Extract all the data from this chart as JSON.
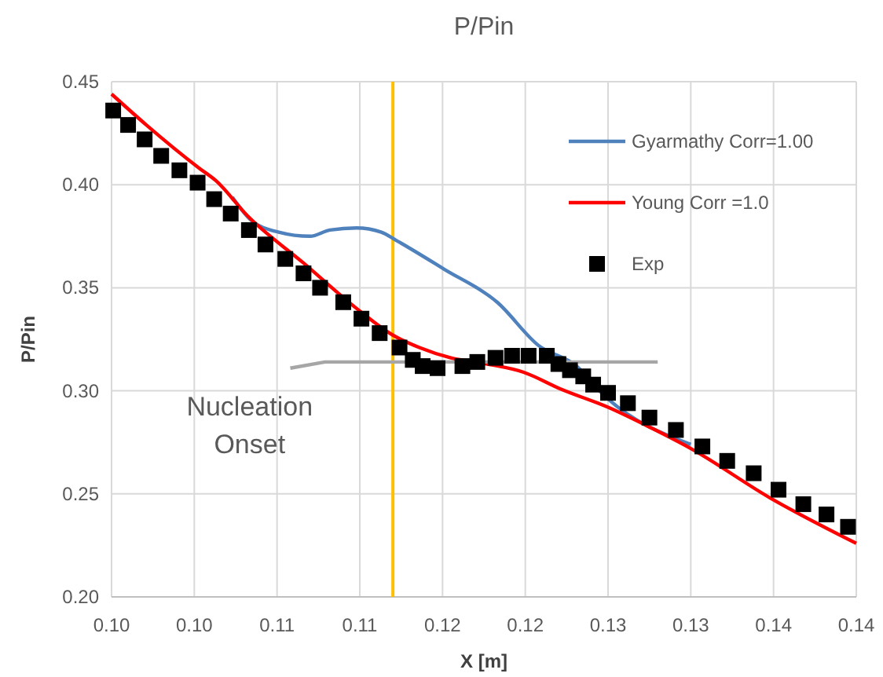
{
  "chart_data": {
    "type": "line",
    "title": "P/Pin",
    "xlabel": "X [m]",
    "ylabel": "P/Pin",
    "xlim": [
      0.0975,
      0.1425
    ],
    "xticks": [
      {
        "value": 0.0975,
        "label": "0.10"
      },
      {
        "value": 0.1025,
        "label": "0.10"
      },
      {
        "value": 0.1075,
        "label": "0.11"
      },
      {
        "value": 0.1125,
        "label": "0.11"
      },
      {
        "value": 0.1175,
        "label": "0.12"
      },
      {
        "value": 0.1225,
        "label": "0.12"
      },
      {
        "value": 0.1275,
        "label": "0.13"
      },
      {
        "value": 0.1325,
        "label": "0.13"
      },
      {
        "value": 0.1375,
        "label": "0.14"
      },
      {
        "value": 0.1425,
        "label": "0.14"
      }
    ],
    "ylim": [
      0.2,
      0.45
    ],
    "yticks": [
      {
        "value": 0.2,
        "label": "0.20"
      },
      {
        "value": 0.25,
        "label": "0.25"
      },
      {
        "value": 0.3,
        "label": "0.30"
      },
      {
        "value": 0.35,
        "label": "0.35"
      },
      {
        "value": 0.4,
        "label": "0.40"
      },
      {
        "value": 0.45,
        "label": "0.45"
      }
    ],
    "grid": true,
    "legend": "top right",
    "series": [
      {
        "name": "Gyarmathy Corr=1.00",
        "color": "#4f81bd",
        "x": [
          0.1048,
          0.1059,
          0.1076,
          0.1095,
          0.1107,
          0.1123,
          0.1138,
          0.1147,
          0.1176,
          0.1208,
          0.1233,
          0.1256,
          0.1271,
          0.1325
        ],
        "values": [
          0.394,
          0.383,
          0.377,
          0.375,
          0.378,
          0.379,
          0.377,
          0.373,
          0.359,
          0.343,
          0.322,
          0.312,
          0.299,
          0.274
        ]
      },
      {
        "name": "Young Corr =1.0",
        "color": "#ff0000",
        "x": [
          0.0975,
          0.0996,
          0.1028,
          0.1038,
          0.1057,
          0.1091,
          0.1123,
          0.1145,
          0.1161,
          0.118,
          0.1202,
          0.1224,
          0.1246,
          0.1275,
          0.1301,
          0.1325,
          0.1373,
          0.1425
        ],
        "values": [
          0.444,
          0.429,
          0.408,
          0.402,
          0.385,
          0.362,
          0.34,
          0.327,
          0.321,
          0.316,
          0.313,
          0.309,
          0.301,
          0.292,
          0.282,
          0.272,
          0.248,
          0.226
        ]
      },
      {
        "name": "Exp",
        "type": "scatter",
        "marker": "square",
        "color": "#000000",
        "x": [
          0.0976,
          0.0985,
          0.0995,
          0.1005,
          0.1016,
          0.1027,
          0.1037,
          0.1047,
          0.1058,
          0.1068,
          0.108,
          0.1091,
          0.1101,
          0.1115,
          0.1126,
          0.1137,
          0.1149,
          0.1157,
          0.1163,
          0.1172,
          0.1187,
          0.1196,
          0.1207,
          0.1217,
          0.1227,
          0.1238,
          0.1245,
          0.1252,
          0.126,
          0.1266,
          0.1275,
          0.1287,
          0.13,
          0.1316,
          0.1332,
          0.1347,
          0.1363,
          0.1378,
          0.1393,
          0.1407,
          0.142
        ],
        "values": [
          0.436,
          0.429,
          0.422,
          0.414,
          0.407,
          0.401,
          0.393,
          0.386,
          0.378,
          0.371,
          0.364,
          0.357,
          0.35,
          0.343,
          0.335,
          0.328,
          0.321,
          0.315,
          0.312,
          0.311,
          0.312,
          0.314,
          0.316,
          0.317,
          0.317,
          0.317,
          0.313,
          0.31,
          0.307,
          0.303,
          0.299,
          0.294,
          0.287,
          0.281,
          0.273,
          0.266,
          0.26,
          0.252,
          0.245,
          0.24,
          0.234
        ]
      },
      {
        "color": "#a6a6a6",
        "x": [
          0.1083,
          0.1104,
          0.1305
        ],
        "values": [
          0.311,
          0.314,
          0.314
        ]
      }
    ],
    "ref_lines": [
      {
        "axis": "x",
        "value": 0.1145,
        "color": "#ffc000"
      }
    ],
    "annotations": [
      {
        "text": "Nucleation Onset",
        "x": 0.1104,
        "y": 0.314
      }
    ]
  }
}
